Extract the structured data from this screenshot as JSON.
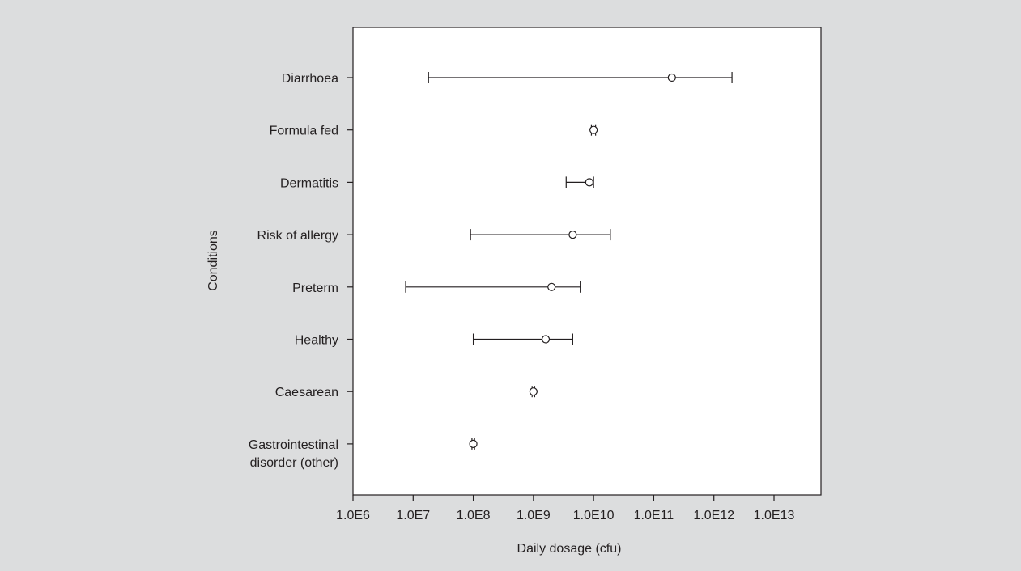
{
  "chart_data": {
    "type": "scatter",
    "xlabel": "Daily dosage (cfu)",
    "ylabel": "Conditions",
    "xscale": "log",
    "xlim": [
      1000000,
      10000000000000
    ],
    "x_ticks": [
      "1.0E6",
      "1.0E7",
      "1.0E8",
      "1.0E9",
      "1.0E10",
      "1.0E11",
      "1.0E12",
      "1.0E13"
    ],
    "grid": false,
    "background_color": "#dcddde",
    "plot_background_color": "#ffffff",
    "mark_color": "#231f20",
    "categories": [
      [
        "Diarrhoea"
      ],
      [
        "Formula fed"
      ],
      [
        "Dermatitis"
      ],
      [
        "Risk of allergy"
      ],
      [
        "Preterm"
      ],
      [
        "Healthy"
      ],
      [
        "Caesarean"
      ],
      [
        "Gastrointestinal",
        "disorder (other)"
      ]
    ],
    "points": [
      {
        "center": 200000000000,
        "low": 18000000,
        "high": 2000000000000
      },
      {
        "center": 10000000000,
        "low": 9200000000,
        "high": 10800000000
      },
      {
        "center": 8500000000,
        "low": 3500000000,
        "high": 10000000000
      },
      {
        "center": 4500000000,
        "low": 90000000,
        "high": 19000000000
      },
      {
        "center": 2000000000,
        "low": 7500000,
        "high": 6000000000
      },
      {
        "center": 1600000000,
        "low": 100000000,
        "high": 4500000000
      },
      {
        "center": 1000000000,
        "low": 950000000,
        "high": 1050000000
      },
      {
        "center": 100000000,
        "low": 95000000,
        "high": 105000000
      }
    ]
  }
}
